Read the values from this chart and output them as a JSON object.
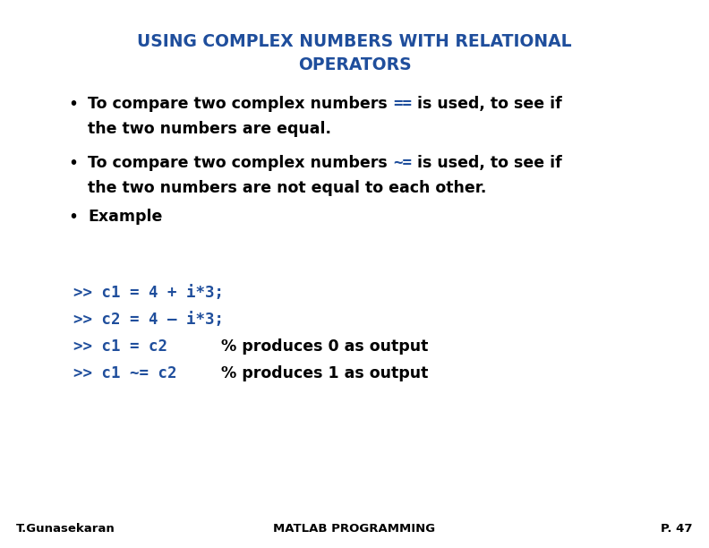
{
  "title_line1": "USING COMPLEX NUMBERS WITH RELATIONAL",
  "title_line2": "OPERATORS",
  "title_color": "#1F4E9C",
  "background_color": "#FFFFFF",
  "footer_left": "T.Gunasekaran",
  "footer_center": "MATLAB PROGRAMMING",
  "footer_right": "P. 47",
  "text_color_black": "#000000",
  "text_color_blue": "#1F4E9C",
  "fig_width": 7.92,
  "fig_height": 6.12,
  "fig_dpi": 100
}
